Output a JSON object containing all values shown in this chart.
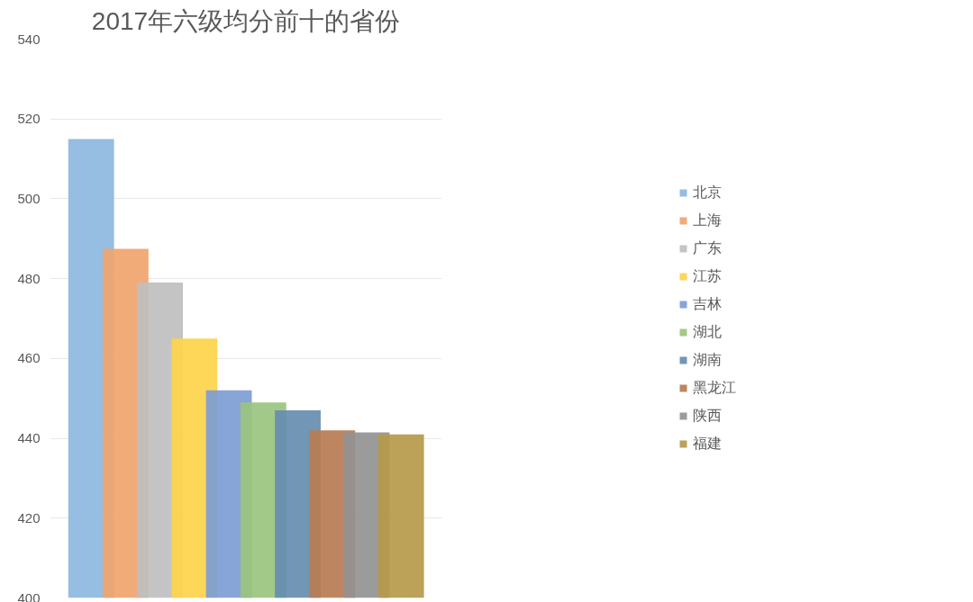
{
  "chart_data": {
    "type": "bar",
    "title": "2017年六级均分前十的省份",
    "categories": [
      null
    ],
    "series": [
      {
        "name": "北京",
        "color": "#8db7e0",
        "values": [
          515
        ]
      },
      {
        "name": "上海",
        "color": "#f0a46e",
        "values": [
          487.5
        ]
      },
      {
        "name": "广东",
        "color": "#bfbfbf",
        "values": [
          479
        ]
      },
      {
        "name": "江苏",
        "color": "#fed34a",
        "values": [
          465
        ]
      },
      {
        "name": "吉林",
        "color": "#7d9dd4",
        "values": [
          452
        ]
      },
      {
        "name": "湖北",
        "color": "#9bc47e",
        "values": [
          449
        ]
      },
      {
        "name": "湖南",
        "color": "#668daf",
        "values": [
          447
        ]
      },
      {
        "name": "黑龙江",
        "color": "#b87c52",
        "values": [
          442
        ]
      },
      {
        "name": "陕西",
        "color": "#929292",
        "values": [
          441.5
        ]
      },
      {
        "name": "福建",
        "color": "#b59a4a",
        "values": [
          441
        ]
      }
    ],
    "ylim": [
      400,
      540
    ],
    "yticks": [
      400,
      420,
      440,
      460,
      480,
      500,
      520,
      540
    ],
    "grid": "y",
    "legend": "right"
  }
}
